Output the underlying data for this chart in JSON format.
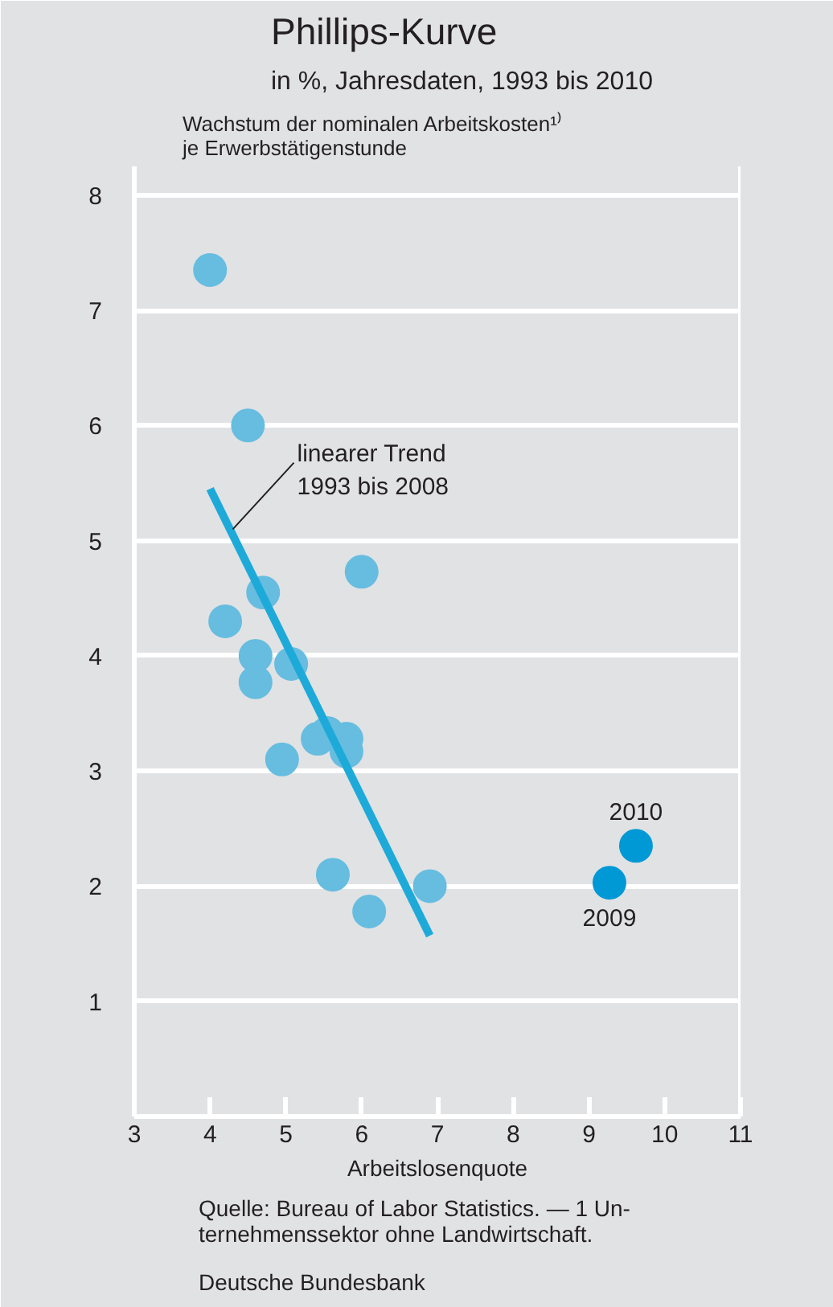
{
  "chart_data": {
    "type": "scatter",
    "title": "Phillips-Kurve",
    "subtitle": "in %, Jahresdaten, 1993 bis 2010",
    "xlabel": "Arbeitslosenquote",
    "ylabel": "Wachstum der nominalen Arbeitskosten¹⁾\nje Erwerbstätigenstunde",
    "xlim": [
      3,
      11
    ],
    "ylim": [
      0,
      8.25
    ],
    "xticks": [
      3,
      4,
      5,
      6,
      7,
      8,
      9,
      10,
      11
    ],
    "yticks": [
      1,
      2,
      3,
      4,
      5,
      6,
      7,
      8
    ],
    "grid": "y",
    "series": [
      {
        "marker": "circle",
        "color": "#66bde0",
        "x": [
          4.0,
          4.5,
          4.2,
          4.7,
          4.6,
          4.6,
          5.07,
          4.95,
          5.42,
          5.55,
          5.8,
          5.8,
          6.0,
          5.62,
          6.1,
          6.9
        ],
        "values": [
          7.35,
          6.0,
          4.3,
          4.55,
          4.0,
          3.77,
          3.93,
          3.1,
          3.28,
          3.33,
          3.28,
          3.17,
          4.73,
          2.1,
          1.78,
          2.0
        ]
      },
      {
        "marker": "circle",
        "color": "#0099d6",
        "x": [
          9.27,
          9.62
        ],
        "values": [
          2.03,
          2.35
        ]
      },
      {
        "type": "line",
        "color": "#1eaad9",
        "x": [
          4.0,
          6.9
        ],
        "values": [
          5.45,
          1.57
        ]
      }
    ],
    "annotations": [
      {
        "text": "linearer Trend\n1993 bis 2008",
        "x": 4.3,
        "y": 5.1
      },
      {
        "text": "2010",
        "x": 9.62,
        "y": 2.35
      },
      {
        "text": "2009",
        "x": 9.27,
        "y": 2.03
      },
      "Quelle: Bureau of Labor Statistics. — 1 Un-\nternehmenssektor ohne Landwirtschaft.",
      "Deutsche Bundesbank"
    ]
  }
}
